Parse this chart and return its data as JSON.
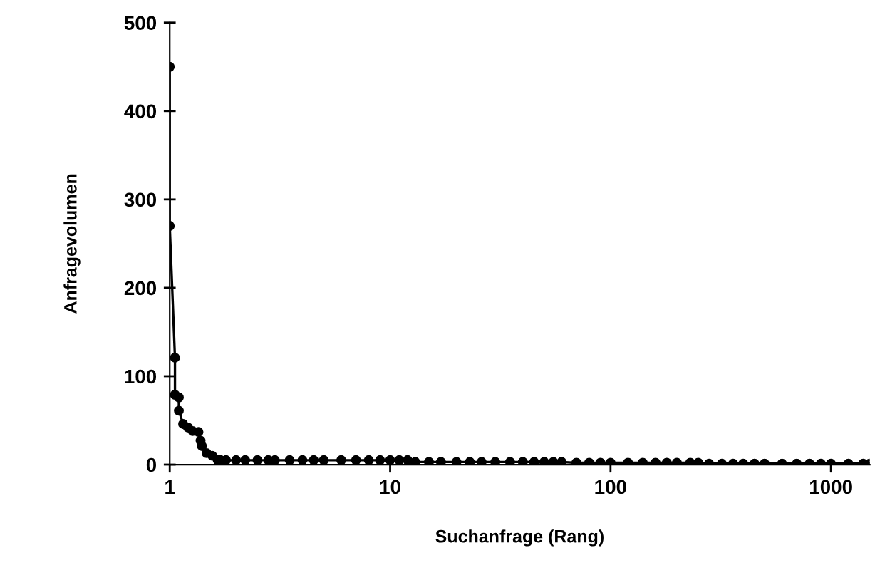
{
  "chart_data": {
    "type": "line",
    "xlabel": "Suchanfrage (Rang)",
    "ylabel": "Anfragevolumen",
    "log": "x",
    "xlim": [
      1,
      1500
    ],
    "xticks": [
      1,
      10,
      100,
      1000
    ],
    "ylim": [
      0,
      500
    ],
    "yticks": [
      0,
      100,
      200,
      300,
      400,
      500
    ],
    "grid": false,
    "marker": "circle",
    "line_style": "solid",
    "x": [
      1,
      1,
      1.056,
      1.056,
      1.1,
      1.1,
      1.15,
      1.21,
      1.27,
      1.35,
      1.38,
      1.4,
      1.47,
      1.56,
      1.65,
      1.7,
      1.8,
      2,
      2.2,
      2.5,
      2.8,
      3,
      3.5,
      4,
      4.5,
      5,
      6,
      7,
      8,
      9,
      10,
      11,
      12,
      13,
      15,
      17,
      20,
      23,
      26,
      30,
      35,
      40,
      45,
      50,
      55,
      60,
      70,
      80,
      90,
      100,
      120,
      140,
      160,
      180,
      200,
      230,
      250,
      280,
      320,
      360,
      400,
      450,
      500,
      600,
      700,
      800,
      900,
      1000,
      1200,
      1400,
      1500
    ],
    "series": [
      {
        "color": "#000000",
        "values": [
          450,
          270,
          121,
          79,
          76,
          61,
          46,
          42,
          38,
          37,
          27,
          21,
          13,
          10,
          5,
          5,
          5,
          5,
          5,
          5,
          5,
          5,
          5,
          5,
          5,
          5,
          5,
          5,
          5,
          5,
          5,
          5,
          5,
          3,
          3,
          3,
          3,
          3,
          3,
          3,
          3,
          3,
          3,
          3,
          3,
          3,
          2,
          2,
          2,
          2,
          2,
          2,
          2,
          2,
          2,
          2,
          2,
          1,
          1,
          1,
          1,
          1,
          1,
          1,
          1,
          1,
          1,
          1,
          1,
          1,
          1
        ]
      }
    ]
  }
}
